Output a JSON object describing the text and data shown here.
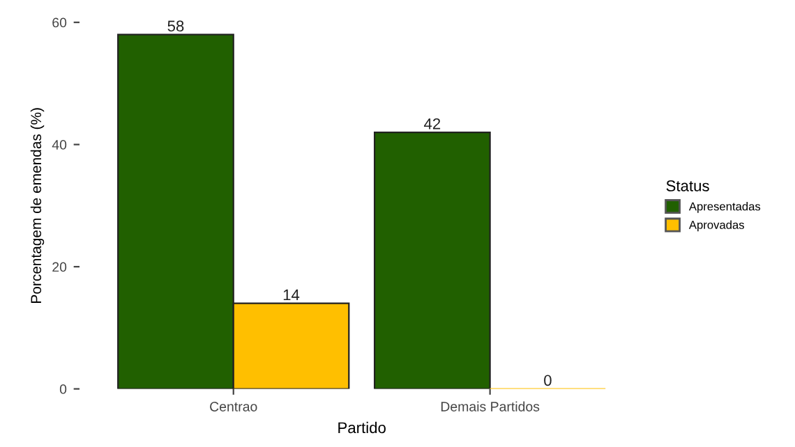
{
  "chart_data": {
    "type": "bar",
    "xlabel": "Partido",
    "ylabel": "Porcentagem de emendas (%)",
    "legend_title": "Status",
    "categories": [
      "Centrao",
      "Demais Partidos"
    ],
    "series": [
      {
        "name": "Apresentadas",
        "color": "#216000",
        "values": [
          58,
          42
        ]
      },
      {
        "name": "Aprovadas",
        "color": "#ffbf00",
        "values": [
          14,
          0
        ]
      }
    ],
    "ylim": [
      0,
      60
    ],
    "yticks": [
      0,
      20,
      40,
      60
    ],
    "data_labels": true,
    "legend": "right",
    "grid": false
  }
}
